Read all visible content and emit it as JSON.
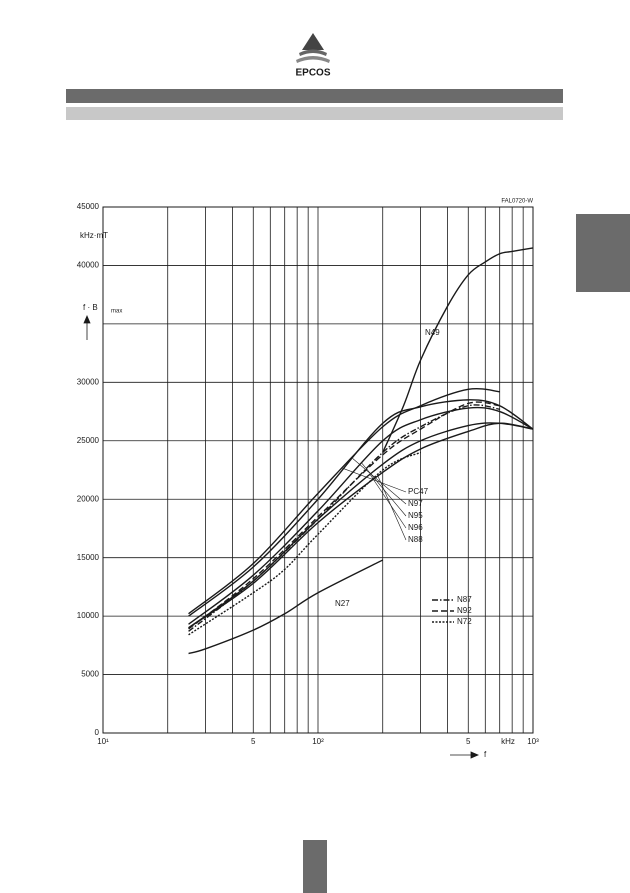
{
  "header": {
    "logo": "EPCOS"
  },
  "chart_data": {
    "type": "line",
    "code": "FAL0720-W",
    "y_unit": "kHz·mT",
    "y_label": "f · B",
    "y_label_sub": "max",
    "x_unit": "kHz",
    "x_label": "f",
    "log_x": true,
    "grid": true,
    "xlim": [
      10,
      1000
    ],
    "ylim": [
      0,
      45000
    ],
    "xticks": [
      {
        "value": 10,
        "label": "10¹"
      },
      {
        "value": 20,
        "label": null
      },
      {
        "value": 30,
        "label": null
      },
      {
        "value": 40,
        "label": null
      },
      {
        "value": 50,
        "label": "5"
      },
      {
        "value": 60,
        "label": null
      },
      {
        "value": 70,
        "label": null
      },
      {
        "value": 80,
        "label": null
      },
      {
        "value": 90,
        "label": null
      },
      {
        "value": 100,
        "label": "10²"
      },
      {
        "value": 200,
        "label": null
      },
      {
        "value": 300,
        "label": null
      },
      {
        "value": 400,
        "label": null
      },
      {
        "value": 500,
        "label": "5"
      },
      {
        "value": 600,
        "label": null
      },
      {
        "value": 700,
        "label": null
      },
      {
        "value": 800,
        "label": null
      },
      {
        "value": 900,
        "label": null
      },
      {
        "value": 1000,
        "label": "10³"
      }
    ],
    "yticks": [
      0,
      5000,
      10000,
      15000,
      20000,
      25000,
      30000,
      {
        "value": 35000,
        "label": null
      },
      40000,
      45000
    ],
    "series": [
      {
        "name": "N49",
        "color": "#1a1a1a",
        "dash": "solid",
        "legend": false,
        "x": [
          200,
          250,
          300,
          400,
          500,
          600,
          700,
          800,
          1000
        ],
        "values": [
          24000,
          28000,
          31900,
          36500,
          39200,
          40300,
          41000,
          41200,
          41500
        ]
      },
      {
        "name": "N27",
        "color": "#1a1a1a",
        "dash": "solid",
        "legend": false,
        "x": [
          25,
          30,
          50,
          70,
          100,
          200
        ],
        "values": [
          6800,
          7200,
          8800,
          10200,
          12000,
          14800
        ]
      },
      {
        "name": "PC47",
        "color": "#1a1a1a",
        "dash": "solid",
        "legend": false,
        "x": [
          25,
          50,
          100,
          200,
          300,
          500,
          700
        ],
        "values": [
          10200,
          14500,
          20500,
          26200,
          28000,
          29400,
          29200
        ]
      },
      {
        "name": "N97",
        "color": "#1a1a1a",
        "dash": "solid",
        "legend": false,
        "x": [
          25,
          50,
          100,
          200,
          300,
          500,
          700,
          1000
        ],
        "values": [
          10000,
          14200,
          20000,
          26500,
          27900,
          28500,
          28000,
          26000
        ]
      },
      {
        "name": "N95",
        "color": "#1a1a1a",
        "dash": "solid",
        "legend": false,
        "x": [
          25,
          50,
          100,
          200,
          300,
          500,
          700,
          1000
        ],
        "values": [
          9300,
          13500,
          19000,
          25000,
          26800,
          27800,
          27500,
          26000
        ]
      },
      {
        "name": "N96",
        "color": "#1a1a1a",
        "dash": "solid",
        "legend": false,
        "x": [
          25,
          50,
          100,
          200,
          300,
          500,
          700,
          1000
        ],
        "values": [
          9000,
          13000,
          18300,
          23000,
          25000,
          26300,
          26500,
          26000
        ]
      },
      {
        "name": "N88",
        "color": "#1a1a1a",
        "dash": "solid",
        "legend": false,
        "x": [
          25,
          50,
          100,
          200,
          300,
          500,
          700,
          1000
        ],
        "values": [
          9000,
          12800,
          18000,
          22300,
          24300,
          25800,
          26500,
          26000
        ]
      },
      {
        "name": "N87",
        "color": "#1a1a1a",
        "dash": "dash-dot",
        "legend": true,
        "x": [
          25,
          50,
          100,
          200,
          300,
          500,
          700
        ],
        "values": [
          8700,
          13000,
          18300,
          24000,
          26200,
          28000,
          27700
        ]
      },
      {
        "name": "N92",
        "color": "#1a1a1a",
        "dash": "dash",
        "legend": true,
        "x": [
          25,
          50,
          100,
          200,
          300,
          500,
          700
        ],
        "values": [
          8900,
          13200,
          18500,
          23800,
          26000,
          28200,
          28000
        ]
      },
      {
        "name": "N72",
        "color": "#1a1a1a",
        "dash": "dot",
        "legend": true,
        "x": [
          25,
          50,
          70,
          100,
          200,
          300
        ],
        "values": [
          8400,
          12000,
          14000,
          17000,
          22500,
          24000
        ]
      }
    ]
  }
}
